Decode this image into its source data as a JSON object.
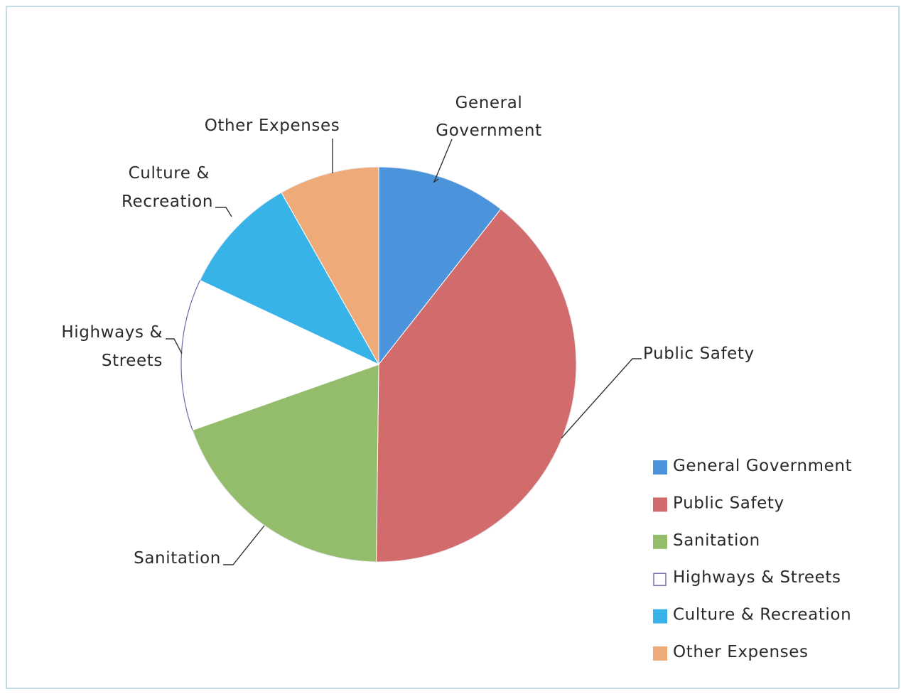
{
  "chart_data": {
    "type": "pie",
    "title": "",
    "categories": [
      "General Government",
      "Public Safety",
      "Sanitation",
      "Highways & Streets",
      "Culture & Recreation",
      "Other Expenses"
    ],
    "values": [
      10.6,
      39.6,
      19.4,
      12.4,
      9.8,
      8.2
    ],
    "unit": "percent (estimated)",
    "colors": [
      "#4b93db",
      "#d26c6c",
      "#93bd6b",
      "#ffffff",
      "#38b3e8",
      "#eeaa78"
    ],
    "slice_labels": [
      [
        "General",
        "Government"
      ],
      [
        "Public Safety"
      ],
      [
        "Sanitation"
      ],
      [
        "Highways &",
        "Streets"
      ],
      [
        "Culture &",
        "Recreation"
      ],
      [
        "Other Expenses"
      ]
    ],
    "legend": {
      "position": "bottom-right",
      "entries": [
        "General Government",
        "Public Safety",
        "Sanitation",
        "Highways & Streets",
        "Culture & Recreation",
        "Other Expenses"
      ]
    }
  }
}
